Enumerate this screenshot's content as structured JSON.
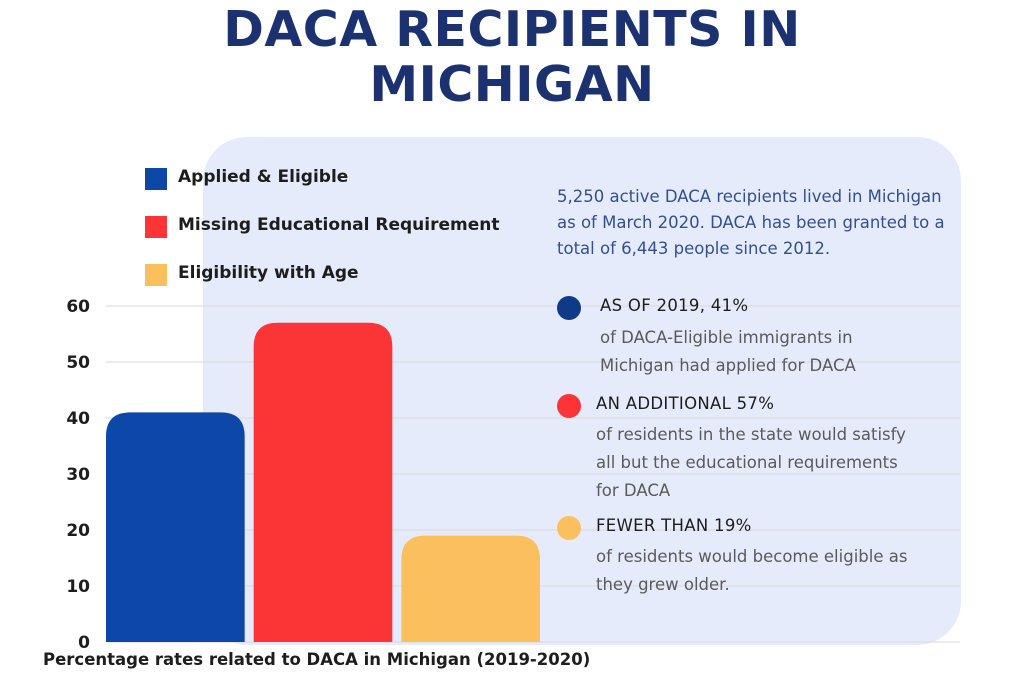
{
  "title": {
    "line1": "DACA RECIPIENTS IN",
    "line2": "MICHIGAN"
  },
  "legend": [
    {
      "label": "Applied & Eligible",
      "color": "#0d47a8"
    },
    {
      "label": "Missing Educational Requirement",
      "color": "#fb3535"
    },
    {
      "label": "Eligibility with Age",
      "color": "#fcbf5e"
    }
  ],
  "intro": "5,250 active DACA recipients lived in Michigan as of March 2020. DACA has been granted to a  total of 6,443 people since 2012.",
  "stats": [
    {
      "heading": "AS OF 2019, 41%",
      "body": "of DACA-Eligible immigrants in Michigan had applied for DACA",
      "color": "#0e3a87"
    },
    {
      "heading": "AN ADDITIONAL 57%",
      "body": "of residents in the state would satisfy all but the educational requirements for DACA",
      "color": "#fb3535"
    },
    {
      "heading": "FEWER THAN 19%",
      "body": "of residents would become eligible as they grew older.",
      "color": "#fcbf5e"
    }
  ],
  "caption": "Percentage rates related to DACA in Michigan (2019-2020)",
  "chart_data": {
    "type": "bar",
    "title": "DACA RECIPIENTS IN MICHIGAN",
    "categories": [
      "Applied & Eligible",
      "Missing Educational Requirement",
      "Eligibility with Age"
    ],
    "values": [
      41,
      57,
      19
    ],
    "colors": [
      "#0d47a8",
      "#fb3535",
      "#fcbf5e"
    ],
    "ylim": [
      0,
      60
    ],
    "yticks": [
      0,
      10,
      20,
      30,
      40,
      50,
      60
    ],
    "grid": true,
    "xlabel": "Percentage rates related to DACA in Michigan (2019-2020)",
    "ylabel": "",
    "legend_position": "top-left"
  }
}
